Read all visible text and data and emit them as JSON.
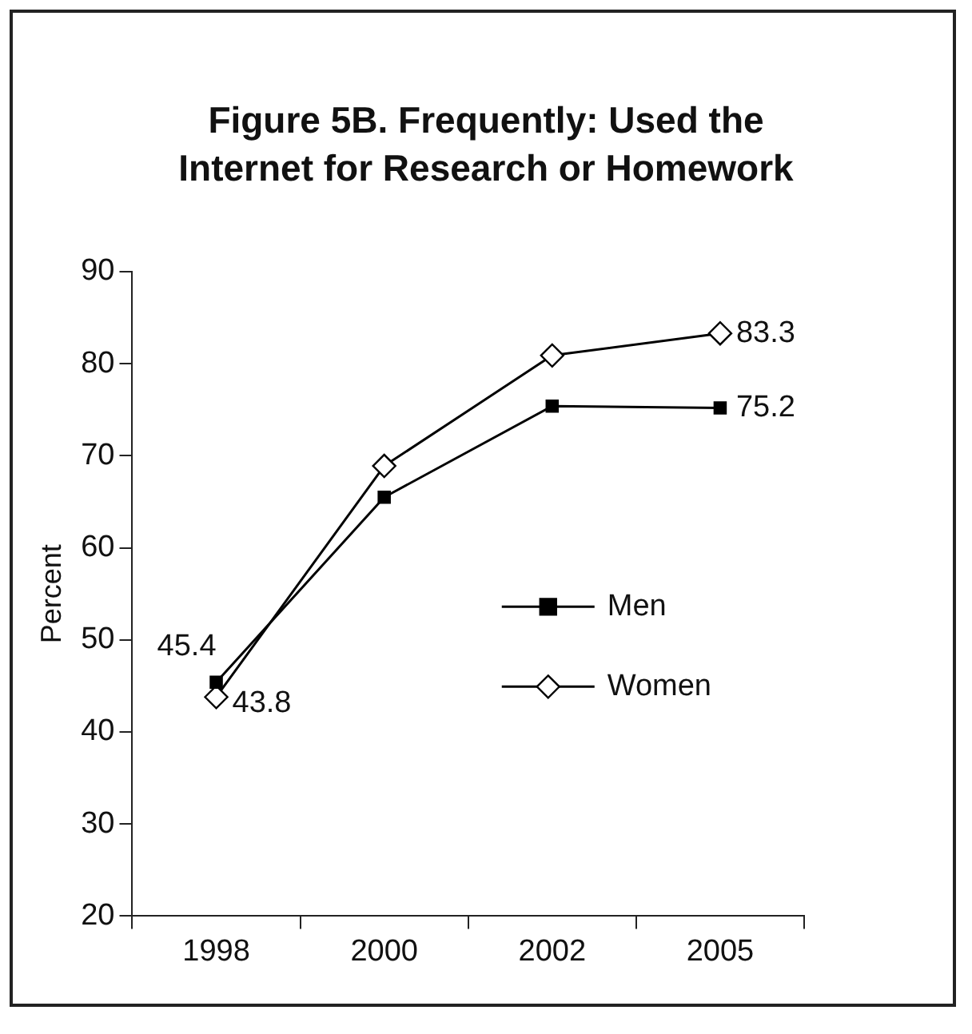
{
  "chart_data": {
    "type": "line",
    "title": "Figure 5B. Frequently: Used the Internet for Research or Homework",
    "ylabel": "Percent",
    "categories": [
      "1998",
      "2000",
      "2002",
      "2005"
    ],
    "series": [
      {
        "name": "Men",
        "color": "#000000",
        "marker": "square",
        "values": [
          45.4,
          65.5,
          75.4,
          75.2
        ],
        "value_labels": [
          "45.4",
          null,
          null,
          "75.2"
        ]
      },
      {
        "name": "Women",
        "color": "#000000",
        "marker": "diamond",
        "values": [
          43.8,
          68.9,
          80.9,
          83.3
        ],
        "value_labels": [
          "43.8",
          null,
          null,
          "83.3"
        ]
      }
    ],
    "ylim": [
      20,
      90
    ],
    "yticks": [
      20,
      30,
      40,
      50,
      60,
      70,
      80,
      90
    ],
    "grid": false,
    "legend": "right"
  }
}
